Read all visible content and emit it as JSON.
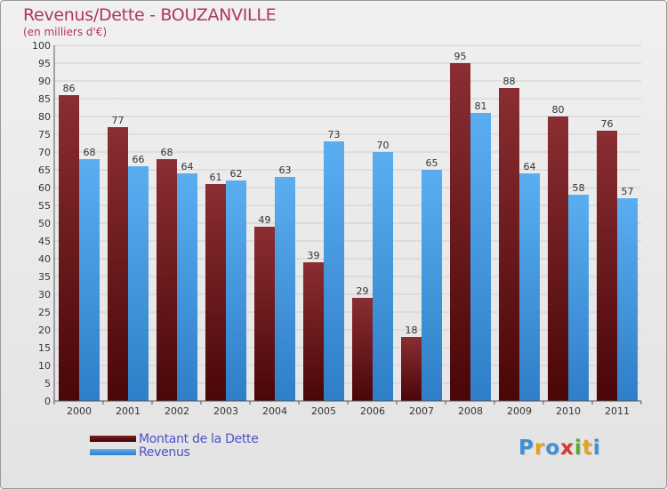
{
  "title": "Revenus/Dette - BOUZANVILLE",
  "subtitle": "(en milliers d'€)",
  "legend": [
    {
      "label": "Montant de la Dette",
      "color": "#6e1a1e"
    },
    {
      "label": "Revenus",
      "color": "#4a9de0"
    }
  ],
  "logo": {
    "letters": [
      "P",
      "r",
      "o",
      "x",
      "i",
      "t",
      "i"
    ],
    "colors": [
      "#3d8fd6",
      "#e6a21b",
      "#3d8fd6",
      "#d63b2a",
      "#5aa832",
      "#e6a21b",
      "#3d8fd6"
    ]
  },
  "chart_data": {
    "type": "bar",
    "title": "Revenus/Dette - BOUZANVILLE",
    "subtitle": "(en milliers d'€)",
    "categories": [
      "2000",
      "2001",
      "2002",
      "2003",
      "2004",
      "2005",
      "2006",
      "2007",
      "2008",
      "2009",
      "2010",
      "2011"
    ],
    "series": [
      {
        "name": "Montant de la Dette",
        "values": [
          86,
          77,
          68,
          61,
          49,
          39,
          29,
          18,
          95,
          88,
          80,
          76
        ],
        "color": "#6e1a1e"
      },
      {
        "name": "Revenus",
        "values": [
          68,
          66,
          64,
          62,
          63,
          73,
          70,
          65,
          81,
          64,
          58,
          57
        ],
        "color": "#4a9de0"
      }
    ],
    "ylim": [
      0,
      100
    ],
    "ytick_step": 5,
    "grid": true,
    "legend_position": "bottom-left",
    "data_labels": true
  }
}
